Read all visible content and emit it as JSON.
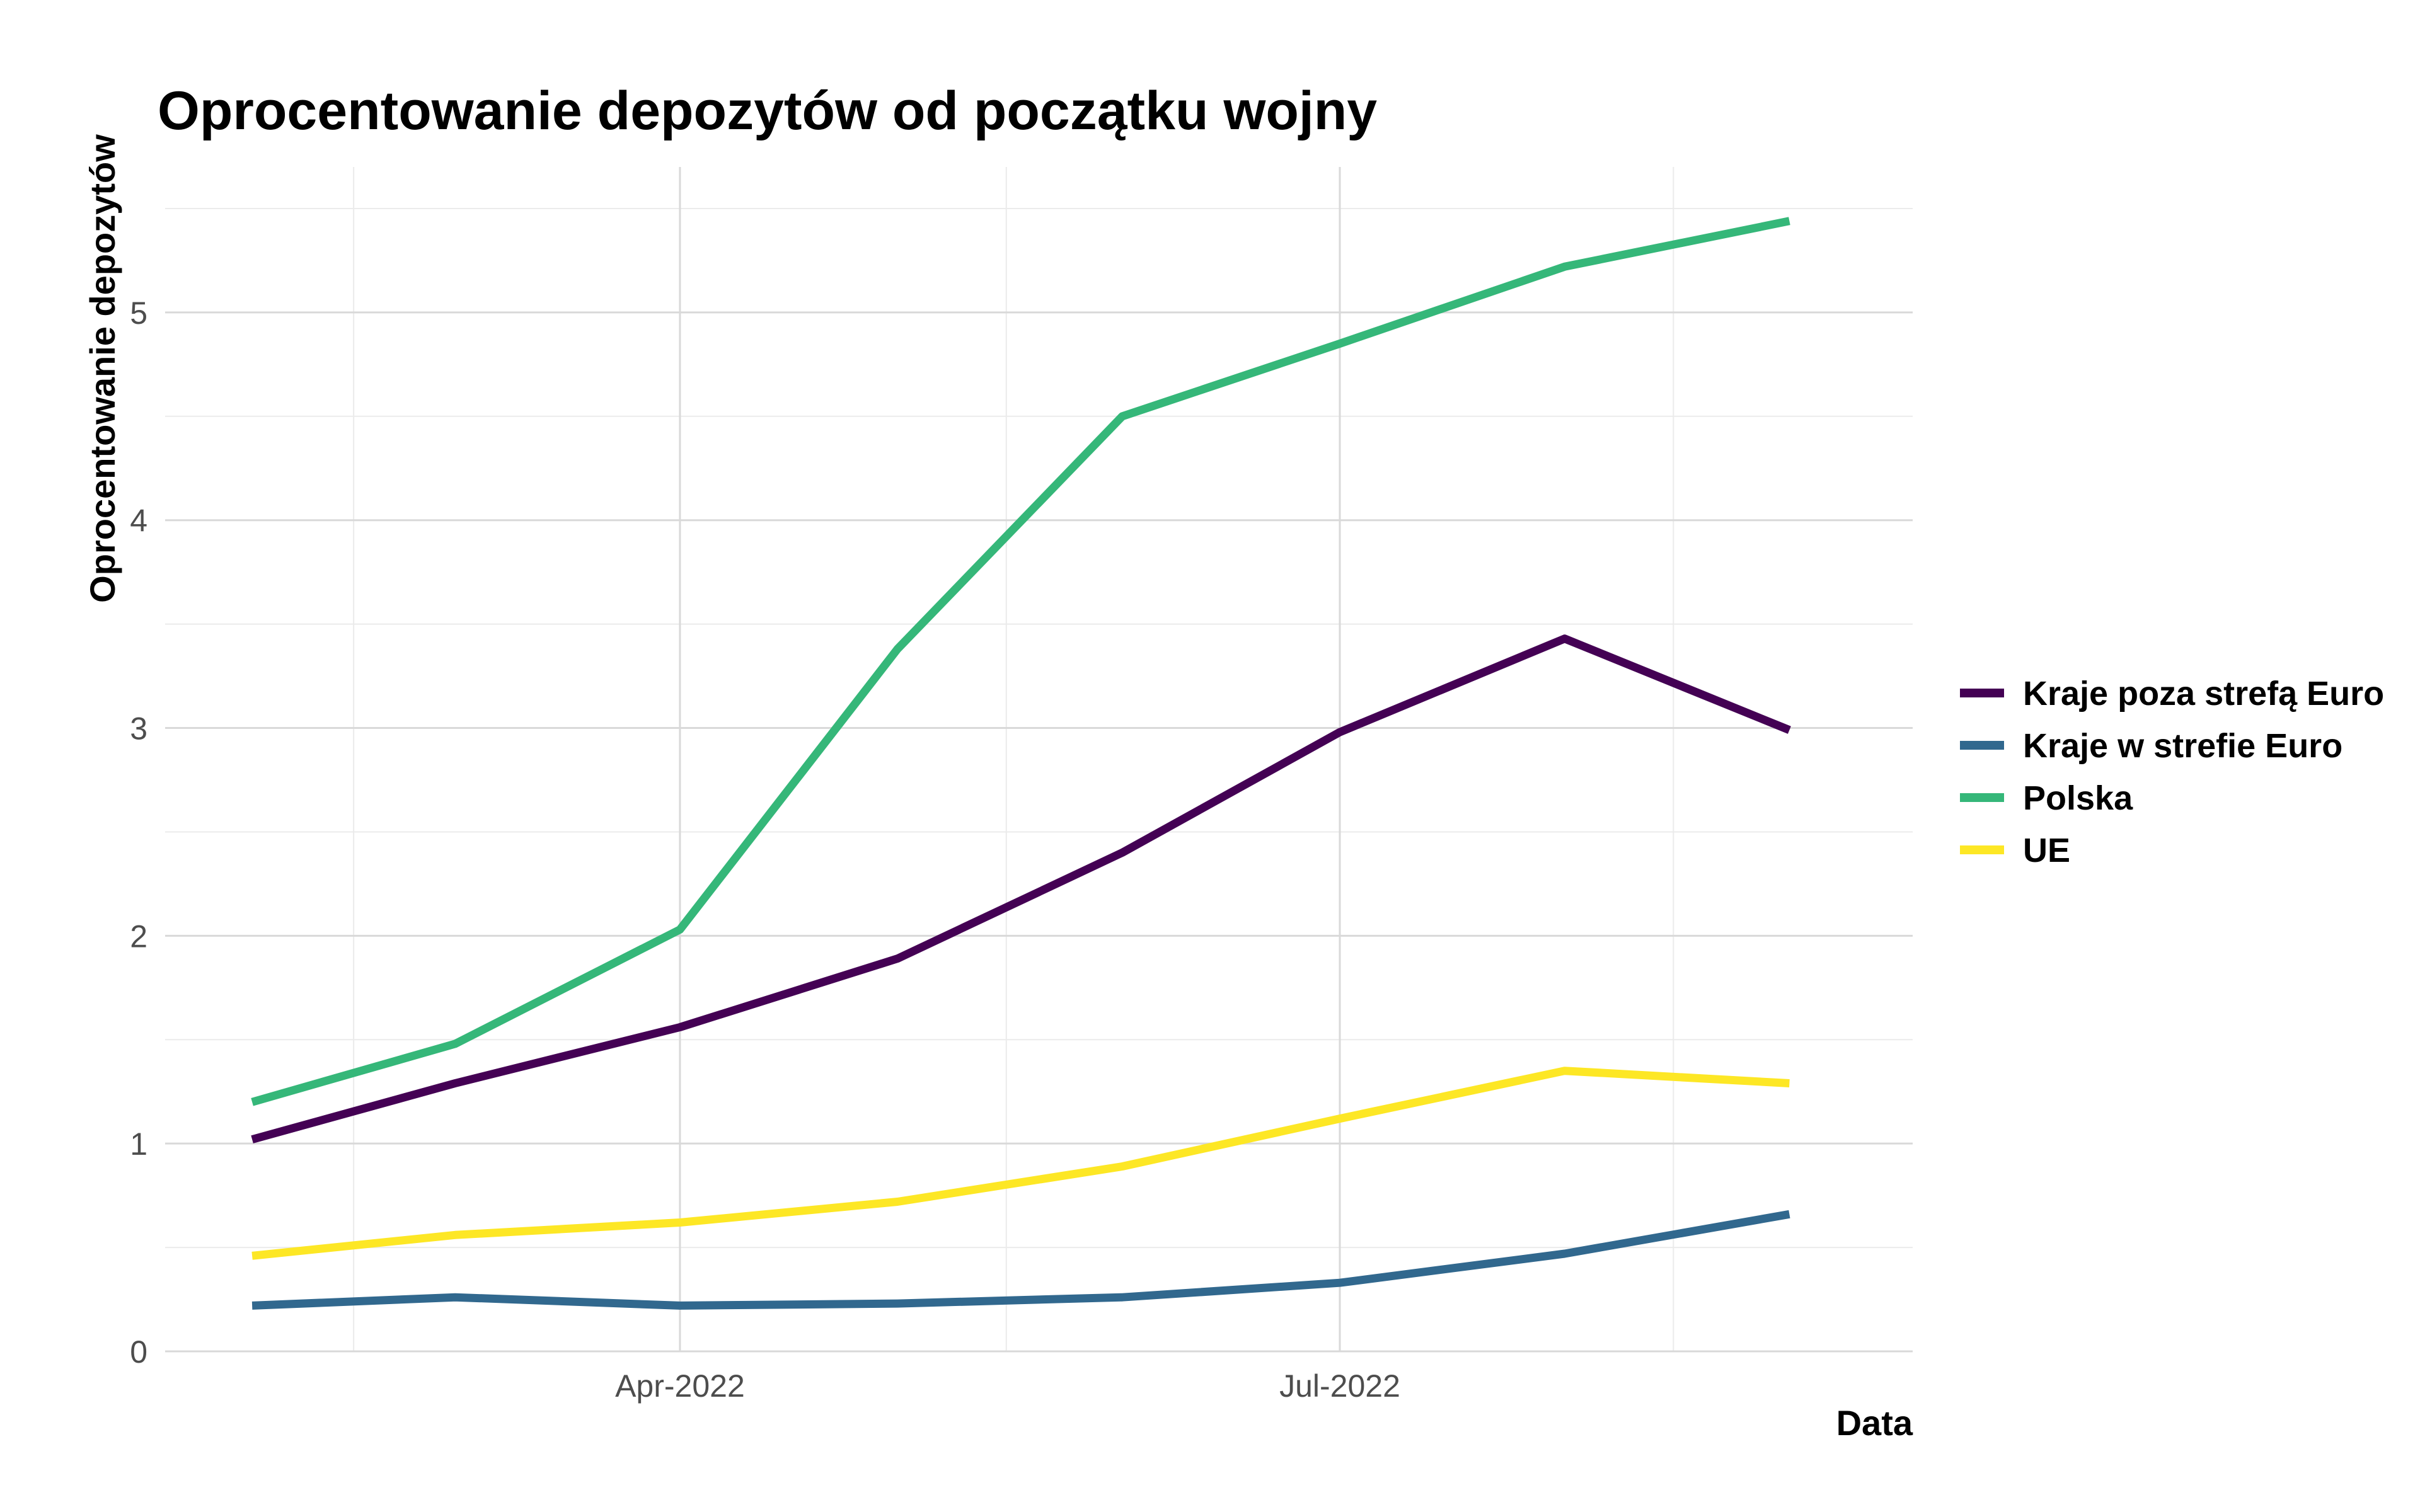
{
  "chart_data": {
    "type": "line",
    "title": "Oprocentowanie depozytów od początku wojny",
    "xlabel": "Data",
    "ylabel": "Oprocentowanie depozytów",
    "x": [
      "2022-02-01",
      "2022-03-01",
      "2022-04-01",
      "2022-05-01",
      "2022-06-01",
      "2022-07-01",
      "2022-08-01",
      "2022-09-01"
    ],
    "x_ticks": [
      {
        "date": "2022-04-01",
        "label": "Apr-2022"
      },
      {
        "date": "2022-07-01",
        "label": "Jul-2022"
      }
    ],
    "x_minor_ticks": [
      "2022-02-15",
      "2022-05-16",
      "2022-08-16"
    ],
    "xlim": [
      "2022-01-20",
      "2022-09-18"
    ],
    "y_ticks": [
      0,
      1,
      2,
      3,
      4,
      5
    ],
    "y_ticks_text": [
      "0",
      "1",
      "2",
      "3",
      "4",
      "5"
    ],
    "y_minor_ticks": [
      0.5,
      1.5,
      2.5,
      3.5,
      4.5,
      5.5
    ],
    "ylim": [
      0,
      5.7
    ],
    "grid": true,
    "legend_position": "right",
    "series": [
      {
        "name": "Kraje poza strefą Euro",
        "color": "#440154",
        "values": [
          1.02,
          1.29,
          1.56,
          1.89,
          2.4,
          2.98,
          3.43,
          2.99
        ]
      },
      {
        "name": "Kraje w strefie Euro",
        "color": "#31688E",
        "values": [
          0.22,
          0.26,
          0.22,
          0.23,
          0.26,
          0.33,
          0.47,
          0.66
        ]
      },
      {
        "name": "Polska",
        "color": "#35B779",
        "values": [
          1.2,
          1.48,
          2.03,
          3.38,
          4.5,
          4.85,
          5.22,
          5.44
        ]
      },
      {
        "name": "UE",
        "color": "#FDE725",
        "values": [
          0.46,
          0.56,
          0.62,
          0.72,
          0.89,
          1.12,
          1.35,
          1.29
        ]
      }
    ]
  }
}
